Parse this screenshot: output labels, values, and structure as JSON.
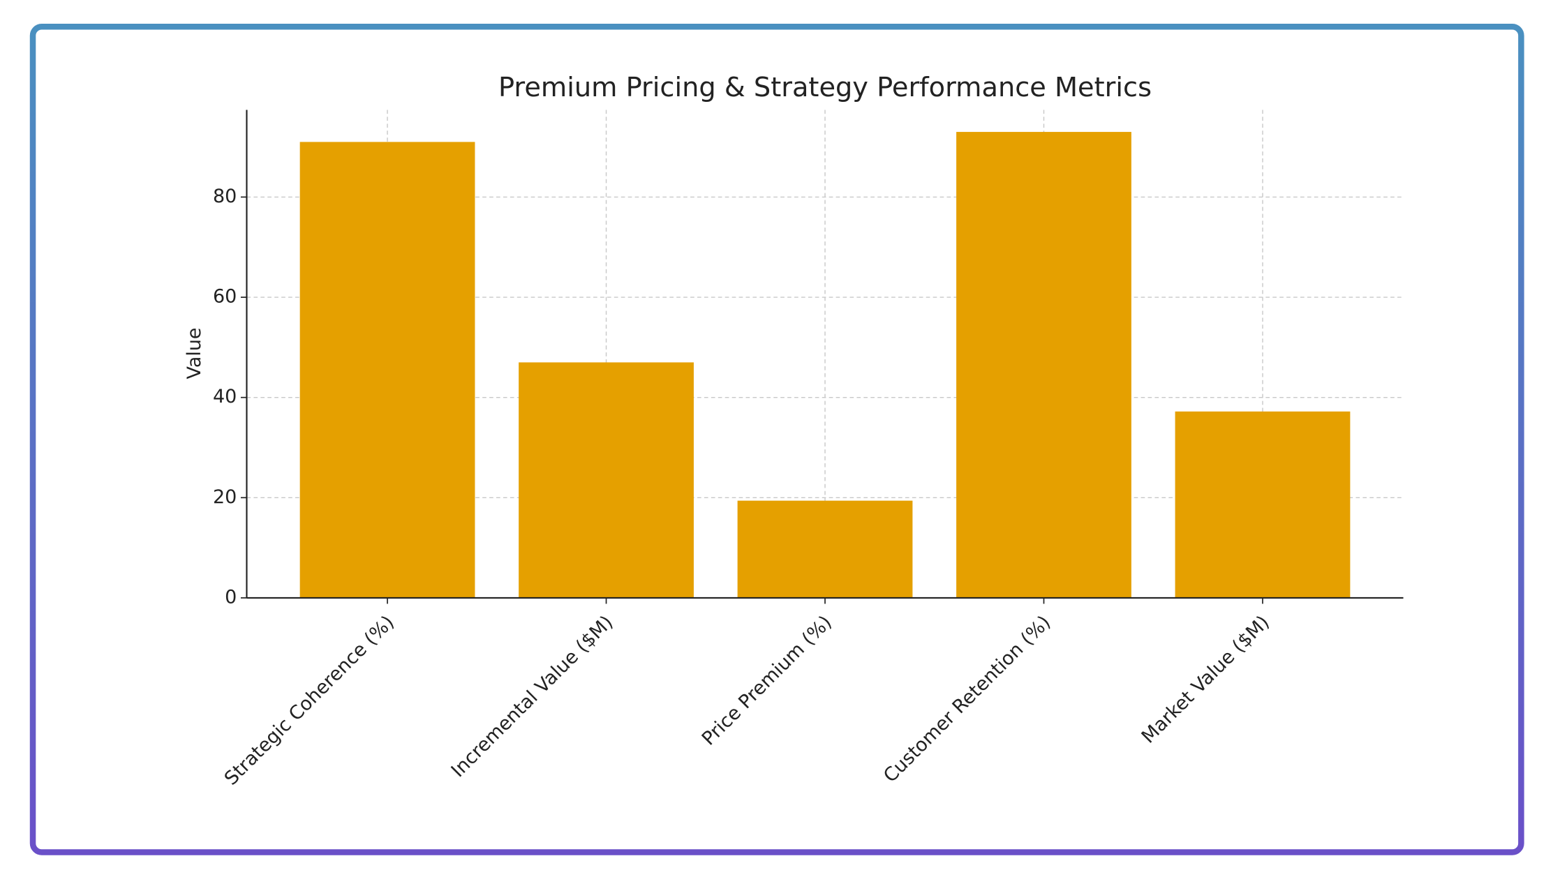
{
  "chart_data": {
    "type": "bar",
    "title": "Premium Pricing & Strategy Performance Metrics",
    "ylabel": "Value",
    "categories": [
      "Strategic Coherence (%)",
      "Incremental Value ($M)",
      "Price Premium (%)",
      "Customer Retention (%)",
      "Market Value ($M)"
    ],
    "values": [
      91,
      47,
      19.4,
      93,
      37.2
    ],
    "color": "#e5a000",
    "ylim": [
      0,
      97.4
    ],
    "yticks": [
      0,
      20,
      40,
      60,
      80
    ],
    "grid": true
  }
}
